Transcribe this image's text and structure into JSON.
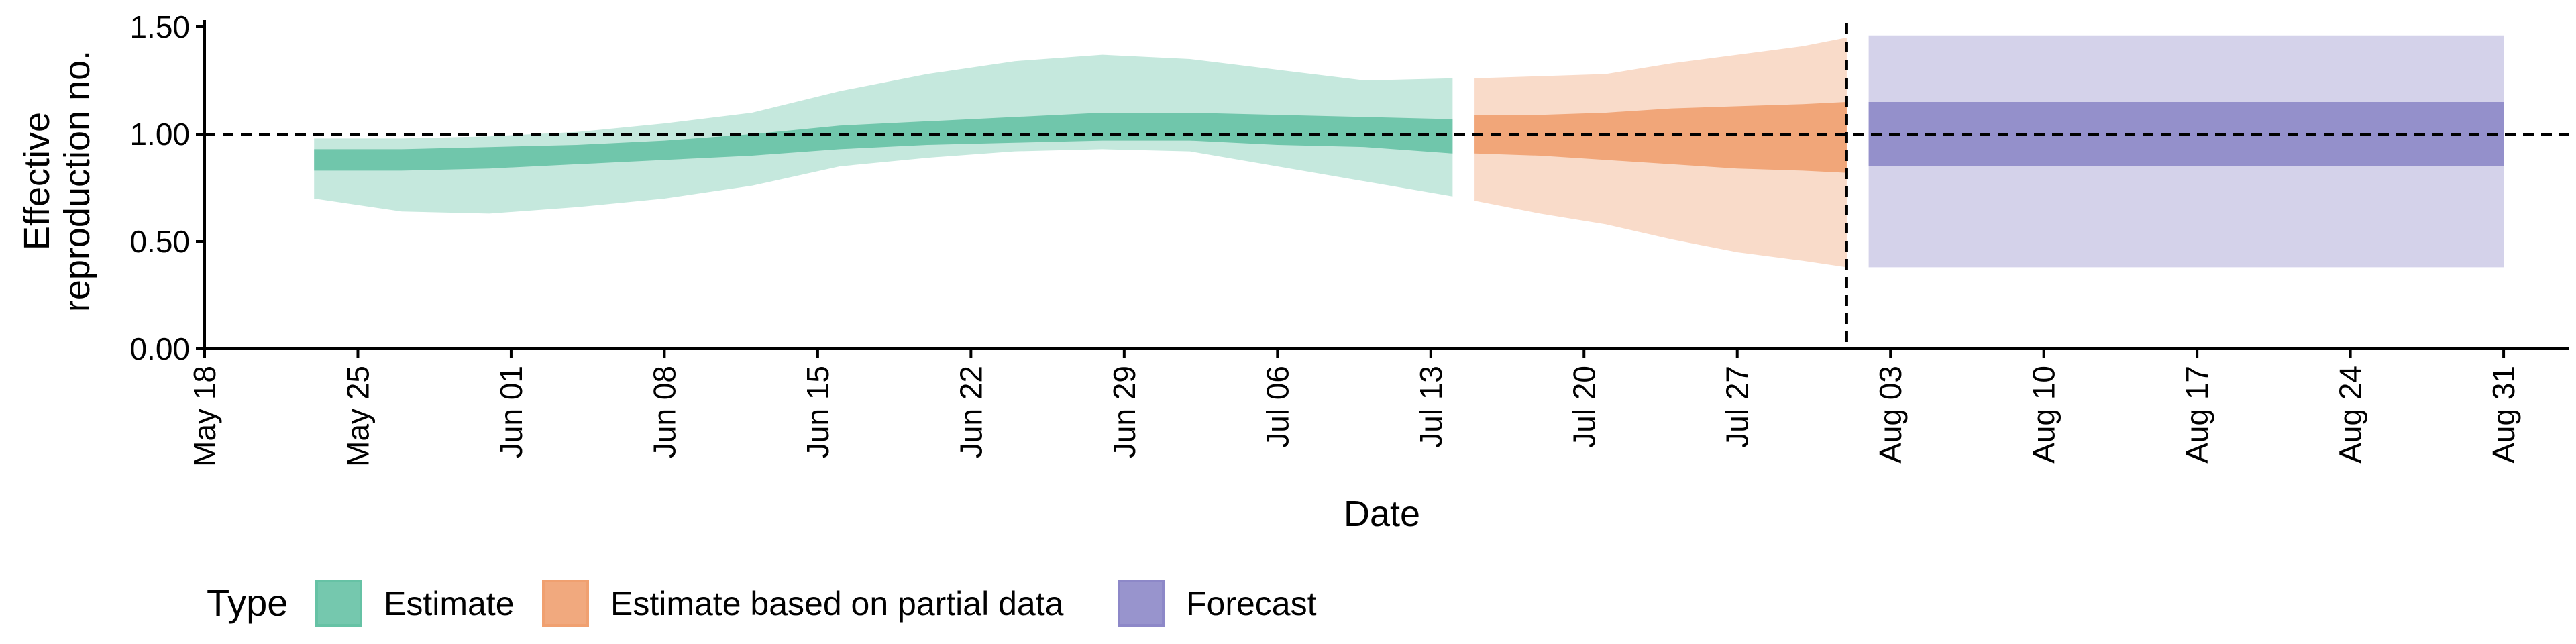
{
  "chart_data": {
    "type": "area",
    "title": "",
    "xlabel": "Date",
    "ylabel_lines": [
      "Effective",
      "reproduction no."
    ],
    "ylim": [
      0,
      1.5
    ],
    "y_ticks": [
      "0.00",
      "0.50",
      "1.00",
      "1.50"
    ],
    "y_tick_values": [
      0,
      0.5,
      1.0,
      1.5
    ],
    "x_range": [
      "2020-05-18",
      "2020-09-03"
    ],
    "x_ticks": [
      "May 18",
      "May 25",
      "Jun 01",
      "Jun 08",
      "Jun 15",
      "Jun 22",
      "Jun 29",
      "Jul 06",
      "Jul 13",
      "Jul 20",
      "Jul 27",
      "Aug 03",
      "Aug 10",
      "Aug 17",
      "Aug 24",
      "Aug 31"
    ],
    "x_tick_dates": [
      "2020-05-18",
      "2020-05-25",
      "2020-06-01",
      "2020-06-08",
      "2020-06-15",
      "2020-06-22",
      "2020-06-29",
      "2020-07-06",
      "2020-07-13",
      "2020-07-20",
      "2020-07-27",
      "2020-08-03",
      "2020-08-10",
      "2020-08-17",
      "2020-08-24",
      "2020-08-31"
    ],
    "reference_line_y": 1.0,
    "reference_line_date": "2020-08-01",
    "legend_position": "bottom",
    "legend_title": "Type",
    "series": [
      {
        "name": "Estimate",
        "color": "#66c2a5",
        "x": [
          "2020-05-23",
          "2020-05-27",
          "2020-05-31",
          "2020-06-04",
          "2020-06-08",
          "2020-06-12",
          "2020-06-16",
          "2020-06-20",
          "2020-06-24",
          "2020-06-28",
          "2020-07-02",
          "2020-07-06",
          "2020-07-10",
          "2020-07-14"
        ],
        "lower90": [
          0.7,
          0.64,
          0.63,
          0.66,
          0.7,
          0.76,
          0.85,
          0.89,
          0.92,
          0.93,
          0.92,
          0.85,
          0.78,
          0.71
        ],
        "upper90": [
          0.98,
          0.98,
          0.99,
          1.01,
          1.05,
          1.1,
          1.2,
          1.28,
          1.34,
          1.37,
          1.35,
          1.3,
          1.25,
          1.26
        ],
        "lower50": [
          0.83,
          0.83,
          0.84,
          0.86,
          0.88,
          0.9,
          0.93,
          0.95,
          0.96,
          0.97,
          0.97,
          0.95,
          0.94,
          0.91
        ],
        "upper50": [
          0.93,
          0.93,
          0.94,
          0.95,
          0.97,
          1.0,
          1.04,
          1.06,
          1.08,
          1.1,
          1.1,
          1.09,
          1.08,
          1.07
        ]
      },
      {
        "name": "Estimate based on partial data",
        "color": "#f0a070",
        "x": [
          "2020-07-15",
          "2020-07-18",
          "2020-07-21",
          "2020-07-24",
          "2020-07-27",
          "2020-07-30",
          "2020-08-01"
        ],
        "lower90": [
          0.69,
          0.63,
          0.58,
          0.51,
          0.45,
          0.41,
          0.38
        ],
        "upper90": [
          1.26,
          1.27,
          1.28,
          1.33,
          1.37,
          1.41,
          1.45
        ],
        "lower50": [
          0.91,
          0.9,
          0.88,
          0.86,
          0.84,
          0.83,
          0.82
        ],
        "upper50": [
          1.09,
          1.09,
          1.1,
          1.12,
          1.13,
          1.14,
          1.15
        ]
      },
      {
        "name": "Forecast",
        "color": "#8d88c8",
        "x": [
          "2020-08-02",
          "2020-08-31"
        ],
        "lower90": [
          0.38,
          0.38
        ],
        "upper90": [
          1.46,
          1.46
        ],
        "lower50": [
          0.85,
          0.85
        ],
        "upper50": [
          1.15,
          1.15
        ]
      }
    ]
  }
}
